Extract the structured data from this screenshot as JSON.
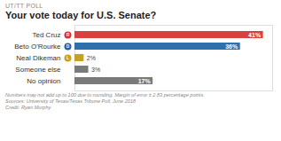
{
  "chart_data": {
    "type": "bar",
    "orientation": "horizontal",
    "supertitle": "UT/TT POLL",
    "title": "Your vote today for U.S. Senate?",
    "categories": [
      "Ted Cruz",
      "Beto O'Rourke",
      "Neal Dikeman",
      "Someone else",
      "No opinion"
    ],
    "values": [
      41,
      36,
      2,
      3,
      17
    ],
    "value_labels": [
      "41%",
      "36%",
      "2%",
      "3%",
      "17%"
    ],
    "colors": [
      "#d94040",
      "#2e6fad",
      "#c8a020",
      "#7a7a7a",
      "#7a7a7a"
    ],
    "icons": [
      "R",
      "D",
      "L",
      null,
      null
    ],
    "icon_colors": [
      "#cc3333",
      "#2060a0",
      "#c8a020",
      null,
      null
    ],
    "footnotes": [
      "Numbers may not add up to 100 due to rounding. Margin of error ± 2.83 percentage points.",
      "Sources: University of Texas/Texas Tribune Poll, June 2018",
      "Credit: Ryan Murphy"
    ],
    "xlim": [
      0,
      43
    ],
    "data_labels": true,
    "tick_labels": "y",
    "grid": false
  }
}
